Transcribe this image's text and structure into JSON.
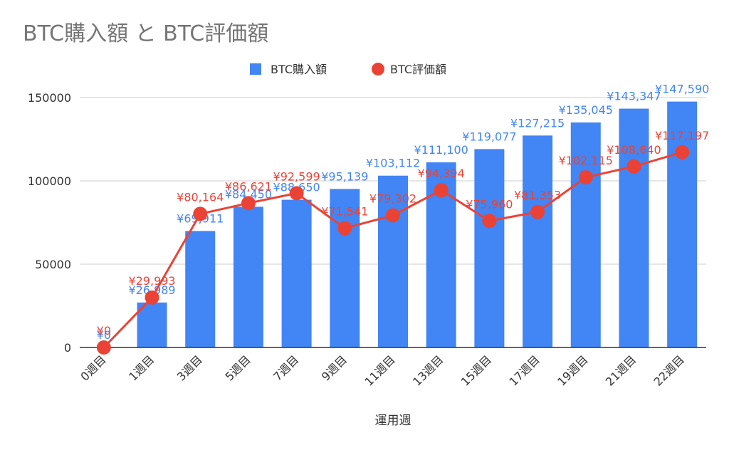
{
  "chart_data": {
    "type": "bar+line",
    "title": "BTC購入額 と BTC評価額",
    "xlabel": "運用週",
    "ylabel": "",
    "ylim": [
      0,
      150000
    ],
    "yticks": [
      "0",
      "50000",
      "100000",
      "150000"
    ],
    "legend_position": "top",
    "grid": true,
    "categories": [
      "0週目",
      "1週目",
      "3週目",
      "5週目",
      "7週目",
      "9週目",
      "11週目",
      "13週目",
      "15週目",
      "17週目",
      "19週目",
      "21週目",
      "22週目"
    ],
    "series": [
      {
        "name": "BTC購入額",
        "type": "bar",
        "color": "#4285f4",
        "values": [
          0,
          26989,
          69911,
          84450,
          88650,
          95139,
          103112,
          111100,
          119077,
          127215,
          135045,
          143347,
          147590
        ],
        "labels": [
          "¥0",
          "¥26,989",
          "¥69,911",
          "¥84,450",
          "¥88,650",
          "¥95,139",
          "¥103,112",
          "¥111,100",
          "¥119,077",
          "¥127,215",
          "¥135,045",
          "¥143,347",
          "¥147,590"
        ]
      },
      {
        "name": "BTC評価額",
        "type": "line",
        "color": "#ea4335",
        "values": [
          0,
          29993,
          80164,
          86621,
          92599,
          71541,
          79302,
          94394,
          75960,
          81353,
          102115,
          108640,
          117197
        ],
        "labels": [
          "¥0",
          "¥29,993",
          "¥80,164",
          "¥86,621",
          "¥92,599",
          "¥71,541",
          "¥79,302",
          "¥94,394",
          "¥75,960",
          "¥81,353",
          "¥102,115",
          "¥108,640",
          "¥117,197"
        ]
      }
    ]
  }
}
